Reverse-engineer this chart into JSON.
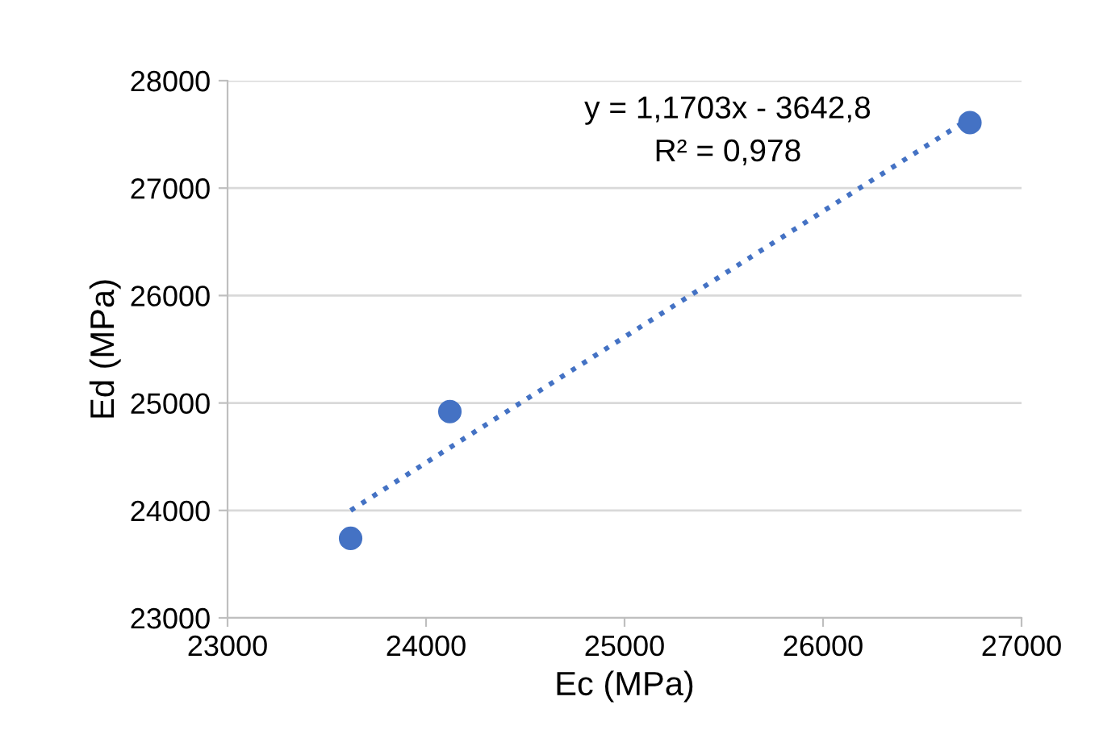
{
  "chart_data": {
    "type": "scatter",
    "xlabel": "Ec (MPa)",
    "ylabel": "Ed (MPa)",
    "series": [
      {
        "color": "#4472c4",
        "marker": "circle",
        "x": [
          23620,
          24120,
          26740
        ],
        "values": [
          23740,
          24920,
          27610
        ]
      },
      {
        "type": "line",
        "color": "#4472c4",
        "line_style": "dotted",
        "marker": "none",
        "x": [
          23620,
          26740
        ],
        "values": [
          24000,
          27650
        ]
      }
    ],
    "annotations": [
      "y = 1,1703x - 3642,8",
      "R² = 0,978"
    ],
    "xlim": [
      23000,
      27000
    ],
    "xticks": [
      23000,
      24000,
      25000,
      26000,
      27000
    ],
    "ylim": [
      23000,
      28000
    ],
    "yticks": [
      23000,
      24000,
      25000,
      26000,
      27000,
      28000
    ],
    "grid": "y",
    "legend": false
  }
}
